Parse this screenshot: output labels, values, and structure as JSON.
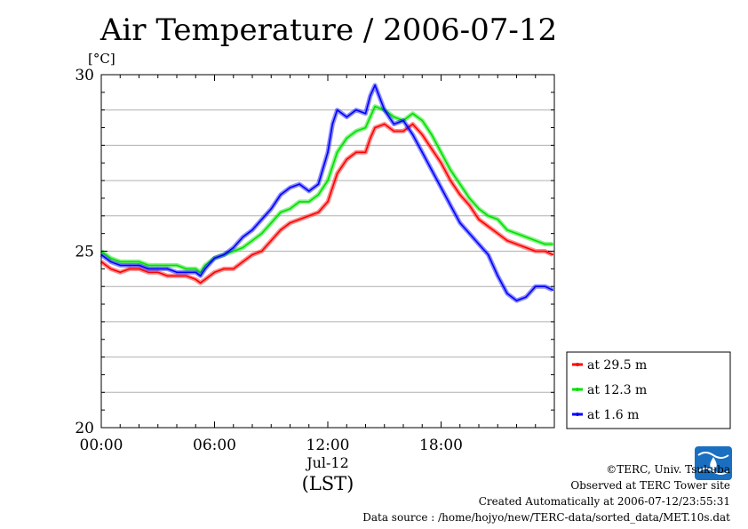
{
  "chart_data": {
    "type": "line",
    "title": "Air Temperature / 2006-07-12",
    "ylabel": "[°C]",
    "xlabel": "(LST)",
    "date_label": "Jul-12",
    "ylim": [
      20,
      30
    ],
    "xlim": [
      "00:00",
      "24:00"
    ],
    "x_ticks": [
      "00:00",
      "06:00",
      "12:00",
      "18:00"
    ],
    "y_ticks": [
      20,
      25,
      30
    ],
    "grid": true,
    "legend_position": "right",
    "x": [
      "00:00",
      "00:30",
      "01:00",
      "01:30",
      "02:00",
      "02:30",
      "03:00",
      "03:30",
      "04:00",
      "04:30",
      "05:00",
      "05:15",
      "05:30",
      "06:00",
      "06:30",
      "07:00",
      "07:30",
      "08:00",
      "08:30",
      "09:00",
      "09:30",
      "10:00",
      "10:30",
      "11:00",
      "11:30",
      "12:00",
      "12:15",
      "12:30",
      "13:00",
      "13:30",
      "14:00",
      "14:15",
      "14:30",
      "15:00",
      "15:30",
      "16:00",
      "16:30",
      "17:00",
      "17:30",
      "18:00",
      "18:30",
      "19:00",
      "19:30",
      "20:00",
      "20:30",
      "21:00",
      "21:30",
      "22:00",
      "22:30",
      "23:00",
      "23:30",
      "23:55"
    ],
    "series": [
      {
        "name": "at 29.5 m",
        "color": "#ff0000",
        "values": [
          24.7,
          24.5,
          24.4,
          24.5,
          24.5,
          24.4,
          24.4,
          24.3,
          24.3,
          24.3,
          24.2,
          24.1,
          24.2,
          24.4,
          24.5,
          24.5,
          24.7,
          24.9,
          25.0,
          25.3,
          25.6,
          25.8,
          25.9,
          26.0,
          26.1,
          26.4,
          26.8,
          27.2,
          27.6,
          27.8,
          27.8,
          28.2,
          28.5,
          28.6,
          28.4,
          28.4,
          28.6,
          28.3,
          27.9,
          27.5,
          27.0,
          26.6,
          26.3,
          25.9,
          25.7,
          25.5,
          25.3,
          25.2,
          25.1,
          25.0,
          25.0,
          24.9
        ]
      },
      {
        "name": "at 12.3 m",
        "color": "#00e000",
        "values": [
          25.0,
          24.8,
          24.7,
          24.7,
          24.7,
          24.6,
          24.6,
          24.6,
          24.6,
          24.5,
          24.5,
          24.4,
          24.6,
          24.8,
          24.9,
          25.0,
          25.1,
          25.3,
          25.5,
          25.8,
          26.1,
          26.2,
          26.4,
          26.4,
          26.6,
          27.0,
          27.4,
          27.8,
          28.2,
          28.4,
          28.5,
          28.8,
          29.1,
          29.0,
          28.8,
          28.7,
          28.9,
          28.7,
          28.3,
          27.8,
          27.3,
          26.9,
          26.5,
          26.2,
          26.0,
          25.9,
          25.6,
          25.5,
          25.4,
          25.3,
          25.2,
          25.2
        ]
      },
      {
        "name": "at 1.6 m",
        "color": "#0000ff",
        "values": [
          24.9,
          24.7,
          24.6,
          24.6,
          24.6,
          24.5,
          24.5,
          24.5,
          24.4,
          24.4,
          24.4,
          24.3,
          24.5,
          24.8,
          24.9,
          25.1,
          25.4,
          25.6,
          25.9,
          26.2,
          26.6,
          26.8,
          26.9,
          26.7,
          26.9,
          27.8,
          28.6,
          29.0,
          28.8,
          29.0,
          28.9,
          29.4,
          29.7,
          29.0,
          28.6,
          28.7,
          28.3,
          27.8,
          27.3,
          26.8,
          26.3,
          25.8,
          25.5,
          25.2,
          24.9,
          24.3,
          23.8,
          23.6,
          23.7,
          24.0,
          24.0,
          23.9
        ]
      }
    ]
  },
  "footer": {
    "copyright": "©TERC, Univ. Tsukuba",
    "observed": "Observed at TERC Tower site",
    "created": "Created Automatically at 2006-07-12/23:55:31",
    "source": "Data source : /home/hojyo/new/TERC-data/sorted_data/MET.10s.dat"
  }
}
